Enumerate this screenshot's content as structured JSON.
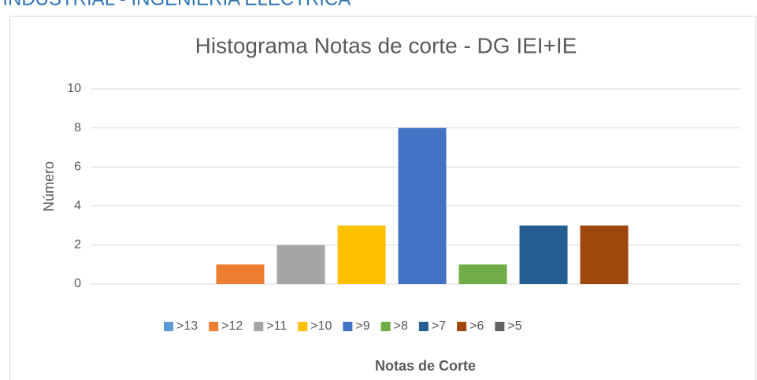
{
  "header": {
    "title": "A INDUSTRIAL - INGENIERÍA ELÉCTRICA"
  },
  "chart_data": {
    "type": "bar",
    "title": "Histograma Notas de corte - DG IEI+IE",
    "y_label": "Número",
    "x_label": "Notas de Corte",
    "series": [
      {
        "name": ">13",
        "color": "#5b9bd5",
        "values": [
          0
        ]
      },
      {
        "name": ">12",
        "color": "#ed7d31",
        "values": [
          1
        ]
      },
      {
        "name": ">11",
        "color": "#a5a5a5",
        "values": [
          2
        ]
      },
      {
        "name": ">10",
        "color": "#ffc000",
        "values": [
          3
        ]
      },
      {
        "name": ">9",
        "color": "#4472c4",
        "values": [
          8
        ]
      },
      {
        "name": ">8",
        "color": "#70ad47",
        "values": [
          1
        ]
      },
      {
        "name": ">7",
        "color": "#255e91",
        "values": [
          3
        ]
      },
      {
        "name": ">6",
        "color": "#9e480e",
        "values": [
          3
        ]
      },
      {
        "name": ">5",
        "color": "#636363",
        "values": [
          0
        ]
      }
    ],
    "ylim": [
      0,
      10
    ],
    "yticks": [
      0,
      2,
      4,
      6,
      8,
      10
    ],
    "grid": true,
    "legend": "bottom"
  }
}
